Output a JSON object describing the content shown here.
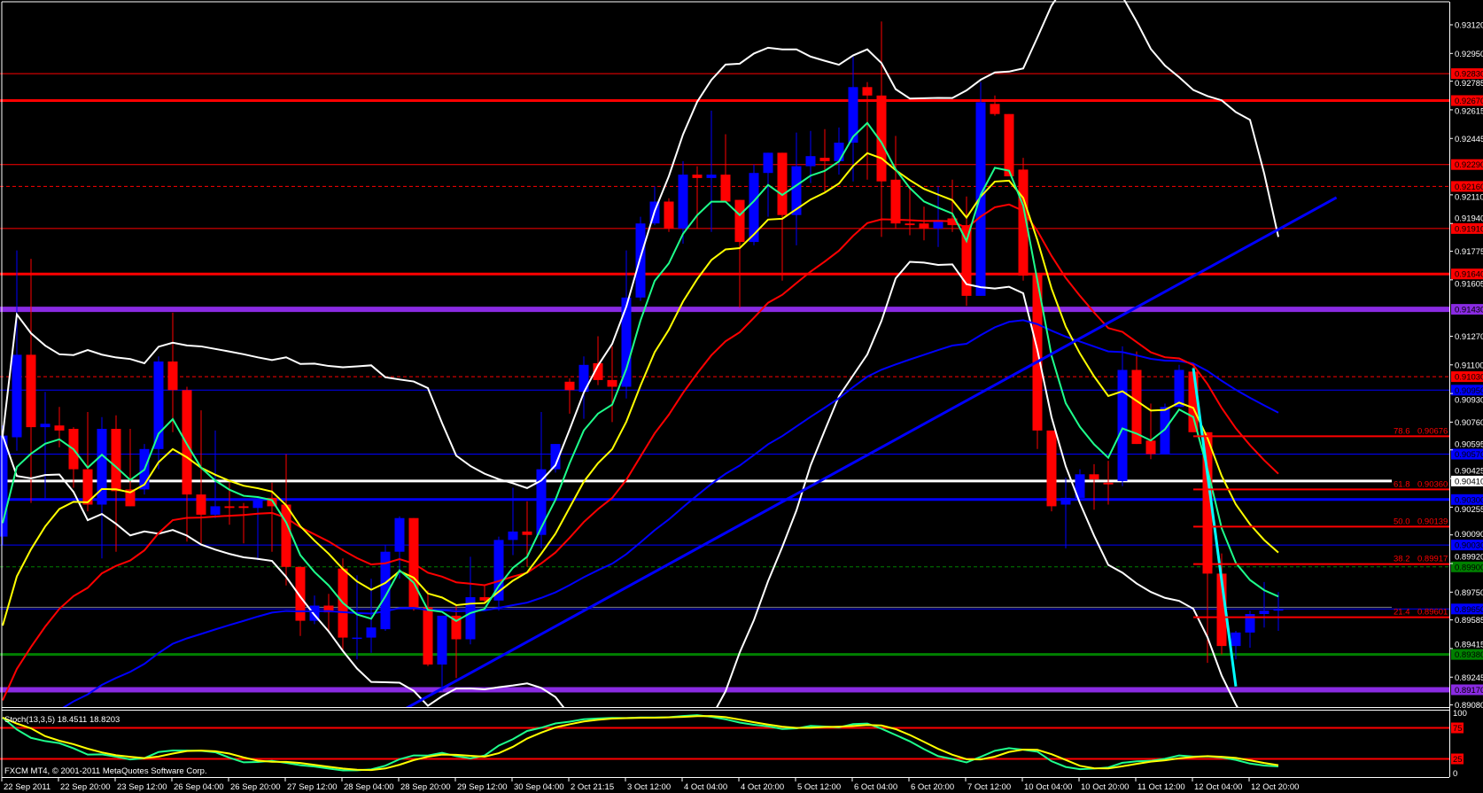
{
  "platform": {
    "copyright": "FXCM MT4, © 2001-2011 MetaQuotes Software Corp."
  },
  "chart_data": {
    "type": "candlestick",
    "colors": {
      "background": "#000000",
      "bull_candle": "#0000ff",
      "bear_candle": "#ff0000",
      "ma_fast": "#1eff8c",
      "ma_medium": "#ffff00",
      "ma_slow": "#ff0000",
      "ma_long": "#0000ff",
      "bollinger": "#ffffff",
      "axis_text": "#ffffff"
    },
    "price_axis": {
      "range": [
        0.8908,
        0.9312
      ],
      "ticks": [
        "0.93120",
        "0.92950",
        "0.92785",
        "0.92615",
        "0.92445",
        "0.92110",
        "0.91940",
        "0.91775",
        "0.91605",
        "0.91270",
        "0.91100",
        "0.90930",
        "0.90760",
        "0.90595",
        "0.90425",
        "0.90255",
        "0.90090",
        "0.89920",
        "0.89750",
        "0.89585",
        "0.89415",
        "0.89245",
        "0.89080"
      ]
    },
    "time_axis": {
      "bars_per_label": 4,
      "labels": [
        "22 Sep 2011",
        "22 Sep 20:00",
        "23 Sep 12:00",
        "26 Sep 04:00",
        "26 Sep 20:00",
        "27 Sep 12:00",
        "28 Sep 04:00",
        "28 Sep 20:00",
        "29 Sep 12:00",
        "30 Sep 04:00",
        "2 Oct 21:15",
        "3 Oct 12:00",
        "4 Oct 04:00",
        "4 Oct 20:00",
        "5 Oct 12:00",
        "6 Oct 04:00",
        "6 Oct 20:00",
        "7 Oct 12:00",
        "10 Oct 04:00",
        "10 Oct 20:00",
        "11 Oct 12:00",
        "12 Oct 04:00",
        "12 Oct 20:00"
      ]
    },
    "candle_fields": [
      "open",
      "high",
      "low",
      "close"
    ],
    "candles": [
      [
        0.9008,
        0.9074,
        0.9003,
        0.9068
      ],
      [
        0.9067,
        0.9178,
        0.9059,
        0.9116
      ],
      [
        0.9116,
        0.9173,
        0.9028,
        0.9073
      ],
      [
        0.9073,
        0.9094,
        0.903,
        0.9075
      ],
      [
        0.9074,
        0.9085,
        0.9061,
        0.9071
      ],
      [
        0.9072,
        0.9073,
        0.9037,
        0.9048
      ],
      [
        0.9048,
        0.9082,
        0.9023,
        0.9027
      ],
      [
        0.9027,
        0.9079,
        0.8995,
        0.9072
      ],
      [
        0.9072,
        0.908,
        0.8999,
        0.9035
      ],
      [
        0.9036,
        0.9072,
        0.9026,
        0.9026
      ],
      [
        0.9036,
        0.9063,
        0.9033,
        0.906
      ],
      [
        0.906,
        0.9115,
        0.9048,
        0.9112
      ],
      [
        0.9112,
        0.9141,
        0.907,
        0.9095
      ],
      [
        0.9095,
        0.9097,
        0.9005,
        0.9033
      ],
      [
        0.9033,
        0.9083,
        0.9004,
        0.9021
      ],
      [
        0.9021,
        0.9071,
        0.9019,
        0.9026
      ],
      [
        0.9026,
        0.904,
        0.9015,
        0.9025
      ],
      [
        0.9026,
        0.9028,
        0.9004,
        0.9025
      ],
      [
        0.9025,
        0.9031,
        0.8994,
        0.903
      ],
      [
        0.9031,
        0.904,
        0.8999,
        0.9026
      ],
      [
        0.9027,
        0.9057,
        0.8979,
        0.899
      ],
      [
        0.899,
        0.899,
        0.8949,
        0.8958
      ],
      [
        0.8958,
        0.8973,
        0.8956,
        0.8967
      ],
      [
        0.8967,
        0.8974,
        0.8951,
        0.8963
      ],
      [
        0.8989,
        0.8995,
        0.894,
        0.8948
      ],
      [
        0.8948,
        0.8985,
        0.8935,
        0.8948
      ],
      [
        0.8948,
        0.8983,
        0.8939,
        0.8954
      ],
      [
        0.8953,
        0.9003,
        0.8952,
        0.8999
      ],
      [
        0.8999,
        0.902,
        0.8983,
        0.9019
      ],
      [
        0.9019,
        0.9019,
        0.8964,
        0.8966
      ],
      [
        0.8966,
        0.8976,
        0.8931,
        0.8932
      ],
      [
        0.8932,
        0.8961,
        0.8916,
        0.8961
      ],
      [
        0.8961,
        0.8967,
        0.8924,
        0.8947
      ],
      [
        0.8947,
        0.8996,
        0.8944,
        0.8972
      ],
      [
        0.8972,
        0.8979,
        0.8969,
        0.897
      ],
      [
        0.897,
        0.9008,
        0.8964,
        0.9006
      ],
      [
        0.9006,
        0.9037,
        0.8997,
        0.9011
      ],
      [
        0.9011,
        0.9029,
        0.899,
        0.9009
      ],
      [
        0.9009,
        0.9082,
        0.9001,
        0.9048
      ],
      [
        0.9048,
        0.9063,
        0.9046,
        0.9063
      ],
      [
        0.91,
        0.9102,
        0.9081,
        0.9095
      ],
      [
        0.9094,
        0.9115,
        0.9078,
        0.911
      ],
      [
        0.9111,
        0.9127,
        0.9098,
        0.9101
      ],
      [
        0.9101,
        0.9121,
        0.9076,
        0.9097
      ],
      [
        0.9097,
        0.9178,
        0.909,
        0.915
      ],
      [
        0.915,
        0.9198,
        0.9148,
        0.9194
      ],
      [
        0.9194,
        0.9216,
        0.9193,
        0.9207
      ],
      [
        0.9207,
        0.9209,
        0.9189,
        0.9191
      ],
      [
        0.9191,
        0.9231,
        0.9182,
        0.9223
      ],
      [
        0.9223,
        0.9228,
        0.9191,
        0.9221
      ],
      [
        0.9221,
        0.9261,
        0.9189,
        0.9223
      ],
      [
        0.9223,
        0.9247,
        0.9207,
        0.9207
      ],
      [
        0.9208,
        0.9208,
        0.9144,
        0.9183
      ],
      [
        0.9183,
        0.9229,
        0.9181,
        0.9224
      ],
      [
        0.9224,
        0.9236,
        0.9198,
        0.9236
      ],
      [
        0.9236,
        0.9236,
        0.916,
        0.9199
      ],
      [
        0.9199,
        0.9248,
        0.9181,
        0.9228
      ],
      [
        0.9228,
        0.9249,
        0.9218,
        0.9234
      ],
      [
        0.9233,
        0.925,
        0.9213,
        0.9231
      ],
      [
        0.9231,
        0.9251,
        0.9223,
        0.9242
      ],
      [
        0.9242,
        0.9293,
        0.9219,
        0.9275
      ],
      [
        0.9275,
        0.9278,
        0.922,
        0.927
      ],
      [
        0.927,
        0.9314,
        0.9186,
        0.9219
      ],
      [
        0.922,
        0.9246,
        0.9191,
        0.9194
      ],
      [
        0.9194,
        0.9216,
        0.9187,
        0.9193
      ],
      [
        0.9194,
        0.9204,
        0.9184,
        0.9191
      ],
      [
        0.9191,
        0.9216,
        0.918,
        0.9196
      ],
      [
        0.9197,
        0.922,
        0.9189,
        0.9193
      ],
      [
        0.9193,
        0.921,
        0.9145,
        0.9151
      ],
      [
        0.9151,
        0.9278,
        0.9151,
        0.9266
      ],
      [
        0.9265,
        0.927,
        0.9258,
        0.9259
      ],
      [
        0.9259,
        0.9259,
        0.9222,
        0.9222
      ],
      [
        0.9226,
        0.9233,
        0.916,
        0.9163
      ],
      [
        0.9164,
        0.9164,
        0.906,
        0.9071
      ],
      [
        0.9071,
        0.9071,
        0.9023,
        0.9026
      ],
      [
        0.9027,
        0.9043,
        0.9001,
        0.9031
      ],
      [
        0.9031,
        0.9048,
        0.9031,
        0.9045
      ],
      [
        0.9045,
        0.9051,
        0.9024,
        0.9042
      ],
      [
        0.904,
        0.9053,
        0.9027,
        0.9039
      ],
      [
        0.9041,
        0.9121,
        0.9038,
        0.9107
      ],
      [
        0.9107,
        0.9118,
        0.9063,
        0.9063
      ],
      [
        0.9065,
        0.9087,
        0.9054,
        0.9057
      ],
      [
        0.9057,
        0.9087,
        0.9057,
        0.9085
      ],
      [
        0.9085,
        0.911,
        0.9085,
        0.9107
      ],
      [
        0.9106,
        0.9109,
        0.907,
        0.907
      ],
      [
        0.907,
        0.907,
        0.8933,
        0.8986
      ],
      [
        0.8986,
        0.8998,
        0.8938,
        0.8943
      ],
      [
        0.8943,
        0.8952,
        0.8935,
        0.8951
      ],
      [
        0.8951,
        0.8964,
        0.8942,
        0.8962
      ],
      [
        0.8962,
        0.8981,
        0.8954,
        0.8964
      ],
      [
        0.8964,
        0.8975,
        0.8952,
        0.8965
      ]
    ],
    "levels": [
      {
        "label": "0.92830",
        "price": 0.9283,
        "color": "#ff0000",
        "style": "solid",
        "weight": "normal"
      },
      {
        "label": "0.92670",
        "price": 0.9267,
        "color": "#ff0000",
        "style": "solid",
        "weight": "bold"
      },
      {
        "label": "0.92290",
        "price": 0.9229,
        "color": "#ff0000",
        "style": "solid",
        "weight": "normal"
      },
      {
        "label": "0.92160",
        "price": 0.9216,
        "color": "#ff0000",
        "style": "dashed",
        "weight": "normal"
      },
      {
        "label": "0.91910",
        "price": 0.9191,
        "color": "#ff0000",
        "style": "solid",
        "weight": "normal"
      },
      {
        "label": "0.91640",
        "price": 0.9164,
        "color": "#ff0000",
        "style": "solid",
        "weight": "bold"
      },
      {
        "label": "0.91430",
        "price": 0.9143,
        "color": "#8a2be2",
        "style": "solid",
        "weight": "heavy"
      },
      {
        "label": "0.91030",
        "price": 0.9103,
        "color": "#ff0000",
        "style": "dashed",
        "weight": "normal"
      },
      {
        "label": "0.90950",
        "price": 0.9095,
        "color": "#0000ff",
        "style": "solid",
        "weight": "normal"
      },
      {
        "label": "0.90570",
        "price": 0.9057,
        "color": "#0000ff",
        "style": "solid",
        "weight": "normal"
      },
      {
        "label": "0.90410",
        "price": 0.9041,
        "color": "#ffffff",
        "style": "solid",
        "weight": "bold"
      },
      {
        "label": "0.90300",
        "price": 0.903,
        "color": "#0000ff",
        "style": "solid",
        "weight": "bold"
      },
      {
        "label": "0.90030",
        "price": 0.9003,
        "color": "#0000ff",
        "style": "solid",
        "weight": "normal"
      },
      {
        "label": "0.89900",
        "price": 0.899,
        "color": "#008000",
        "style": "dashed",
        "weight": "normal"
      },
      {
        "label": "0.89650",
        "price": 0.8965,
        "color": "#0000ff",
        "style": "solid",
        "weight": "normal"
      },
      {
        "label": "0.89380",
        "price": 0.8938,
        "color": "#008000",
        "style": "solid",
        "weight": "bold"
      },
      {
        "label": "0.89170",
        "price": 0.8917,
        "color": "#8a2be2",
        "style": "solid",
        "weight": "heavy"
      }
    ],
    "bid_line": {
      "price": 0.8966,
      "color": "#808080"
    },
    "fibonacci": {
      "color": "#ff0000",
      "from_bar": 84,
      "levels": [
        {
          "ratio": "78.6",
          "value": "0.90676",
          "price": 0.90676
        },
        {
          "ratio": "61.8",
          "value": "0.90360",
          "price": 0.9036
        },
        {
          "ratio": "50.0",
          "value": "0.90139",
          "price": 0.90139
        },
        {
          "ratio": "38.2",
          "value": "0.89917",
          "price": 0.89917
        },
        {
          "ratio": "21.4",
          "value": "0.89601",
          "price": 0.89601
        }
      ]
    },
    "trendlines": [
      {
        "name": "uptrend",
        "from": [
          28.4,
          0.89057
        ],
        "to": [
          94.1,
          0.92094
        ],
        "color": "#0000ff"
      },
      {
        "name": "drop",
        "from": [
          84,
          0.9108
        ],
        "to": [
          87,
          0.8919
        ],
        "color": "#00ffff"
      }
    ],
    "stochastic": {
      "label": "Stoch(13,3,5)",
      "main": "18.4511",
      "signal": "18.8203",
      "scale_top": "100",
      "scale_bottom": "0",
      "levels": [
        {
          "label": "75",
          "value": 75
        },
        {
          "label": "25",
          "value": 25
        }
      ],
      "main_color": "#1eff8c",
      "signal_color": "#ffff00",
      "level_color": "#ff0000"
    }
  }
}
